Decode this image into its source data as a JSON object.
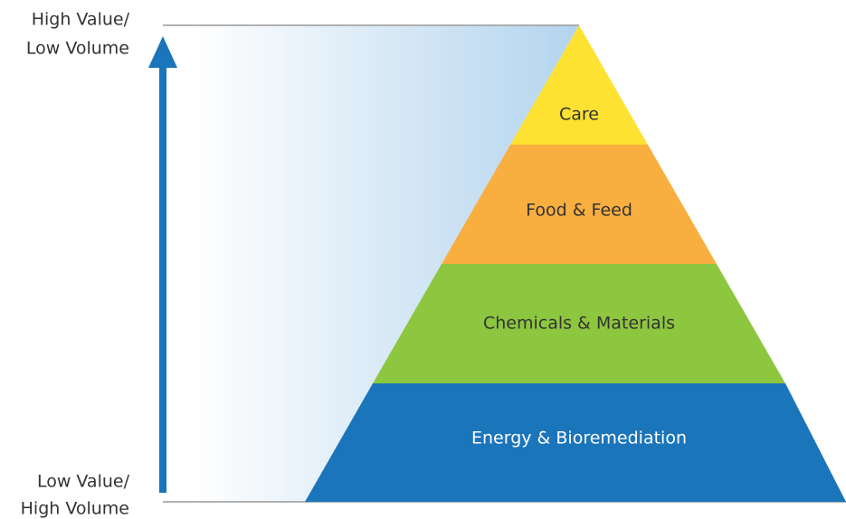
{
  "axis": {
    "top": [
      "High Value/",
      "Low Volume"
    ],
    "bottom": [
      "Low Value/",
      "High Volume"
    ]
  },
  "tiers": [
    "Care",
    "Food & Feed",
    "Chemicals & Materials",
    "Energy & Bioremediation"
  ]
}
